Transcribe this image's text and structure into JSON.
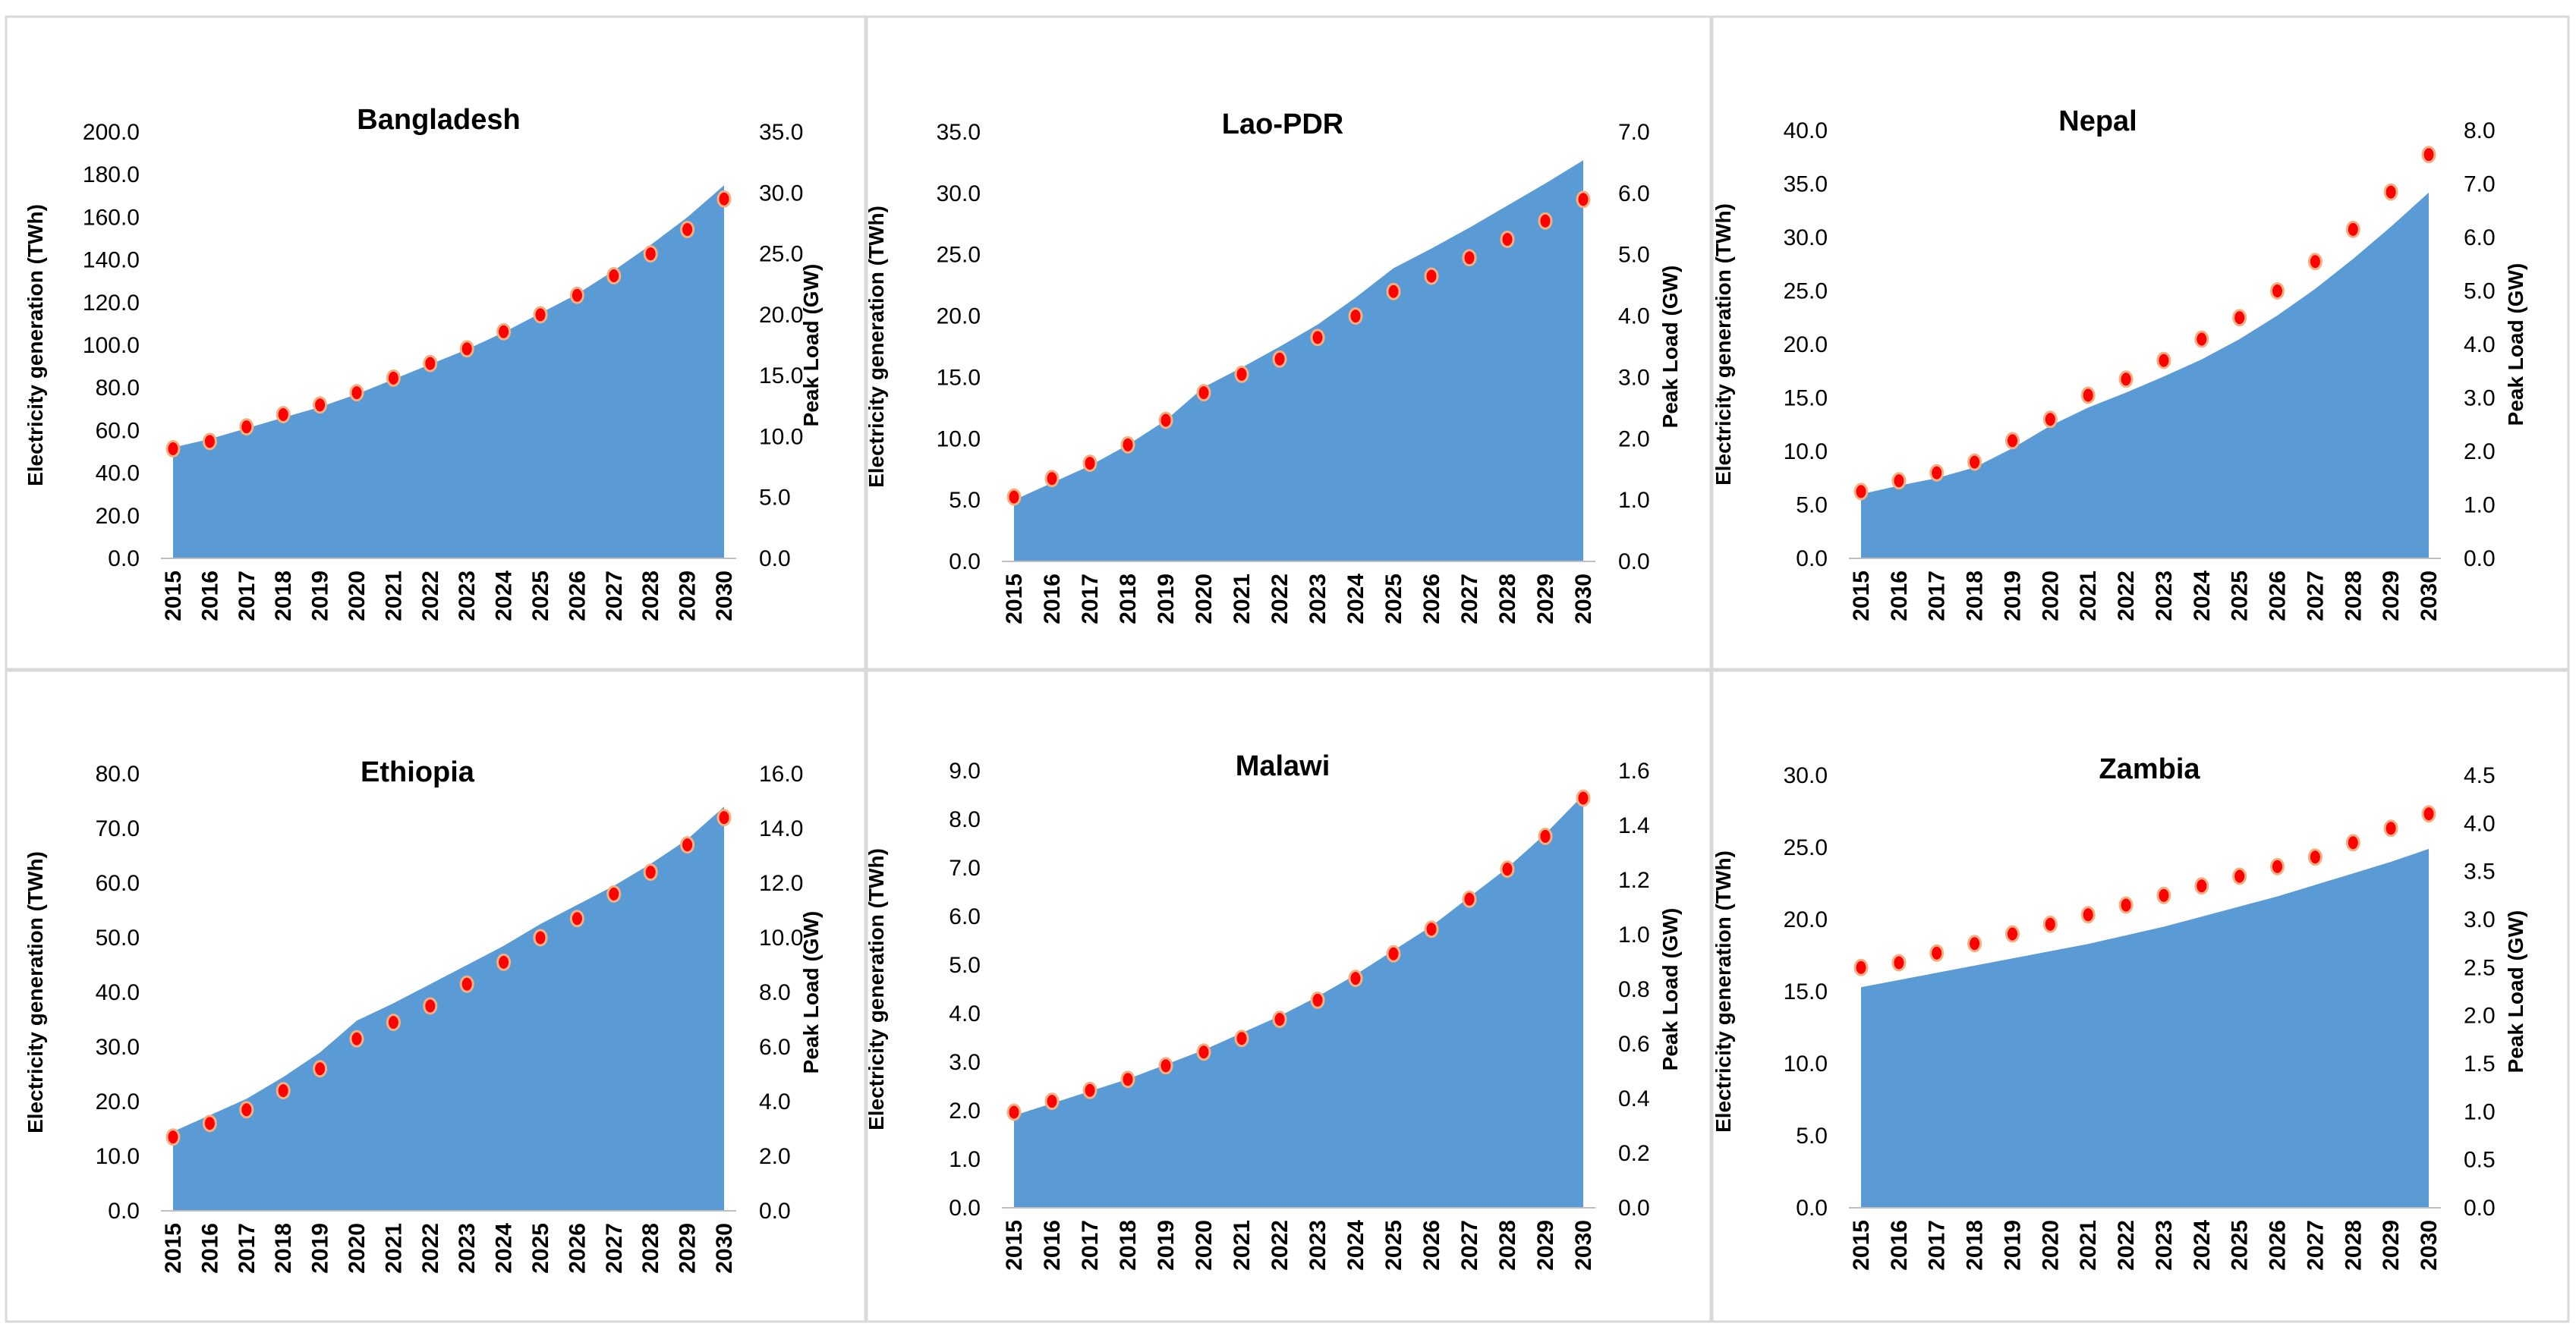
{
  "chart_data": [
    {
      "type": "area",
      "title": "Bangladesh",
      "categories": [
        "2015",
        "2016",
        "2017",
        "2018",
        "2019",
        "2020",
        "2021",
        "2022",
        "2023",
        "2024",
        "2025",
        "2026",
        "2027",
        "2028",
        "2029",
        "2030"
      ],
      "series": [
        {
          "name": "Electricity generation (TWh)",
          "kind": "area",
          "axis": "left",
          "values": [
            52,
            56,
            61,
            66,
            71,
            77,
            84,
            91,
            98,
            106,
            115,
            124,
            135,
            147,
            160,
            175
          ]
        },
        {
          "name": "Peak Load (GW)",
          "kind": "scatter",
          "axis": "right",
          "values": [
            9.0,
            9.6,
            10.8,
            11.8,
            12.6,
            13.6,
            14.8,
            16.0,
            17.2,
            18.6,
            20.0,
            21.6,
            23.2,
            25.0,
            27.0,
            29.5
          ]
        }
      ],
      "ylabel": "Electricity generation (TWh)",
      "y2label": "Peak Load (GW)",
      "ylim": [
        0,
        200
      ],
      "y2lim": [
        0,
        35
      ],
      "yticks": [
        "0.0",
        "20.0",
        "40.0",
        "60.0",
        "80.0",
        "100.0",
        "120.0",
        "140.0",
        "160.0",
        "180.0",
        "200.0"
      ],
      "y2ticks": [
        "0.0",
        "5.0",
        "10.0",
        "15.0",
        "20.0",
        "25.0",
        "30.0",
        "35.0"
      ]
    },
    {
      "type": "area",
      "title": "Lao-PDR",
      "categories": [
        "2015",
        "2016",
        "2017",
        "2018",
        "2019",
        "2020",
        "2021",
        "2022",
        "2023",
        "2024",
        "2025",
        "2026",
        "2027",
        "2028",
        "2029",
        "2030"
      ],
      "series": [
        {
          "name": "Electricity generation (TWh)",
          "kind": "area",
          "axis": "left",
          "values": [
            5.0,
            6.4,
            7.8,
            9.5,
            11.5,
            14.2,
            15.8,
            17.5,
            19.3,
            21.5,
            23.9,
            25.5,
            27.2,
            29.0,
            30.8,
            32.7
          ]
        },
        {
          "name": "Peak Load (GW)",
          "kind": "scatter",
          "axis": "right",
          "values": [
            1.05,
            1.35,
            1.6,
            1.9,
            2.3,
            2.75,
            3.05,
            3.3,
            3.65,
            4.0,
            4.4,
            4.65,
            4.95,
            5.25,
            5.55,
            5.9
          ]
        }
      ],
      "ylabel": "Electricity generation (TWh)",
      "y2label": "Peak Load (GW)",
      "ylim": [
        0,
        35
      ],
      "y2lim": [
        0,
        7
      ],
      "yticks": [
        "0.0",
        "5.0",
        "10.0",
        "15.0",
        "20.0",
        "25.0",
        "30.0",
        "35.0"
      ],
      "y2ticks": [
        "0.0",
        "1.0",
        "2.0",
        "3.0",
        "4.0",
        "5.0",
        "6.0",
        "7.0"
      ]
    },
    {
      "type": "area",
      "title": "Nepal",
      "categories": [
        "2015",
        "2016",
        "2017",
        "2018",
        "2019",
        "2020",
        "2021",
        "2022",
        "2023",
        "2024",
        "2025",
        "2026",
        "2027",
        "2028",
        "2029",
        "2030"
      ],
      "series": [
        {
          "name": "Electricity generation (TWh)",
          "kind": "area",
          "axis": "left",
          "values": [
            6.0,
            6.8,
            7.5,
            8.5,
            10.3,
            12.4,
            14.1,
            15.5,
            17.0,
            18.6,
            20.5,
            22.7,
            25.2,
            28.0,
            31.0,
            34.2
          ]
        },
        {
          "name": "Peak Load (GW)",
          "kind": "scatter",
          "axis": "right",
          "values": [
            1.25,
            1.45,
            1.6,
            1.8,
            2.2,
            2.6,
            3.05,
            3.35,
            3.7,
            4.1,
            4.5,
            5.0,
            5.55,
            6.15,
            6.85,
            7.55
          ]
        }
      ],
      "ylabel": "Electricity generation (TWh)",
      "y2label": "Peak Load (GW)",
      "ylim": [
        0,
        40
      ],
      "y2lim": [
        0,
        8
      ],
      "yticks": [
        "0.0",
        "5.0",
        "10.0",
        "15.0",
        "20.0",
        "25.0",
        "30.0",
        "35.0",
        "40.0"
      ],
      "y2ticks": [
        "0.0",
        "1.0",
        "2.0",
        "3.0",
        "4.0",
        "5.0",
        "6.0",
        "7.0",
        "8.0"
      ]
    },
    {
      "type": "area",
      "title": "Ethiopia",
      "categories": [
        "2015",
        "2016",
        "2017",
        "2018",
        "2019",
        "2020",
        "2021",
        "2022",
        "2023",
        "2024",
        "2025",
        "2026",
        "2027",
        "2028",
        "2029",
        "2030"
      ],
      "series": [
        {
          "name": "Electricity generation (TWh)",
          "kind": "area",
          "axis": "left",
          "values": [
            14.5,
            17.5,
            20.5,
            24.5,
            29.0,
            34.8,
            38.0,
            41.5,
            45.0,
            48.5,
            52.5,
            56.0,
            59.5,
            63.5,
            68.0,
            74.0
          ]
        },
        {
          "name": "Peak Load (GW)",
          "kind": "scatter",
          "axis": "right",
          "values": [
            2.7,
            3.2,
            3.7,
            4.4,
            5.2,
            6.3,
            6.9,
            7.5,
            8.3,
            9.1,
            10.0,
            10.7,
            11.6,
            12.4,
            13.4,
            14.4
          ]
        }
      ],
      "ylabel": "Electricity generation (TWh)",
      "y2label": "Peak Load (GW)",
      "ylim": [
        0,
        80
      ],
      "y2lim": [
        0,
        16
      ],
      "yticks": [
        "0.0",
        "10.0",
        "20.0",
        "30.0",
        "40.0",
        "50.0",
        "60.0",
        "70.0",
        "80.0"
      ],
      "y2ticks": [
        "0.0",
        "2.0",
        "4.0",
        "6.0",
        "8.0",
        "10.0",
        "12.0",
        "14.0",
        "16.0"
      ]
    },
    {
      "type": "area",
      "title": "Malawi",
      "categories": [
        "2015",
        "2016",
        "2017",
        "2018",
        "2019",
        "2020",
        "2021",
        "2022",
        "2023",
        "2024",
        "2025",
        "2026",
        "2027",
        "2028",
        "2029",
        "2030"
      ],
      "series": [
        {
          "name": "Electricity generation (TWh)",
          "kind": "area",
          "axis": "left",
          "values": [
            1.9,
            2.15,
            2.4,
            2.65,
            2.95,
            3.25,
            3.6,
            3.95,
            4.35,
            4.8,
            5.3,
            5.8,
            6.4,
            7.0,
            7.7,
            8.5
          ]
        },
        {
          "name": "Peak Load (GW)",
          "kind": "scatter",
          "axis": "right",
          "values": [
            0.35,
            0.39,
            0.43,
            0.47,
            0.52,
            0.57,
            0.62,
            0.69,
            0.76,
            0.84,
            0.93,
            1.02,
            1.13,
            1.24,
            1.36,
            1.5
          ]
        }
      ],
      "ylabel": "Electricity generation (TWh)",
      "y2label": "Peak Load (GW)",
      "ylim": [
        0,
        9
      ],
      "y2lim": [
        0,
        1.6
      ],
      "yticks": [
        "0.0",
        "1.0",
        "2.0",
        "3.0",
        "4.0",
        "5.0",
        "6.0",
        "7.0",
        "8.0",
        "9.0"
      ],
      "y2ticks": [
        "0.0",
        "0.2",
        "0.4",
        "0.6",
        "0.8",
        "1.0",
        "1.2",
        "1.4",
        "1.6"
      ]
    },
    {
      "type": "area",
      "title": "Zambia",
      "categories": [
        "2015",
        "2016",
        "2017",
        "2018",
        "2019",
        "2020",
        "2021",
        "2022",
        "2023",
        "2024",
        "2025",
        "2026",
        "2027",
        "2028",
        "2029",
        "2030"
      ],
      "series": [
        {
          "name": "Electricity generation (TWh)",
          "kind": "area",
          "axis": "left",
          "values": [
            15.3,
            15.8,
            16.3,
            16.8,
            17.3,
            17.8,
            18.3,
            18.9,
            19.5,
            20.2,
            20.9,
            21.6,
            22.4,
            23.2,
            24.0,
            24.9
          ]
        },
        {
          "name": "Peak Load (GW)",
          "kind": "scatter",
          "axis": "right",
          "values": [
            2.5,
            2.55,
            2.65,
            2.75,
            2.85,
            2.95,
            3.05,
            3.15,
            3.25,
            3.35,
            3.45,
            3.55,
            3.65,
            3.8,
            3.95,
            4.1
          ]
        }
      ],
      "ylabel": "Electricity generation (TWh)",
      "y2label": "Peak Load (GW)",
      "ylim": [
        0,
        30
      ],
      "y2lim": [
        0,
        4.5
      ],
      "yticks": [
        "0.0",
        "5.0",
        "10.0",
        "15.0",
        "20.0",
        "25.0",
        "30.0"
      ],
      "y2ticks": [
        "0.0",
        "0.5",
        "1.0",
        "1.5",
        "2.0",
        "2.5",
        "3.0",
        "3.5",
        "4.0",
        "4.5"
      ]
    }
  ],
  "colors": {
    "area_fill": "#5b9bd5",
    "marker_fill": "#ff0000",
    "marker_edge": "#f4b183",
    "panel_border": "#d9d9d9"
  }
}
